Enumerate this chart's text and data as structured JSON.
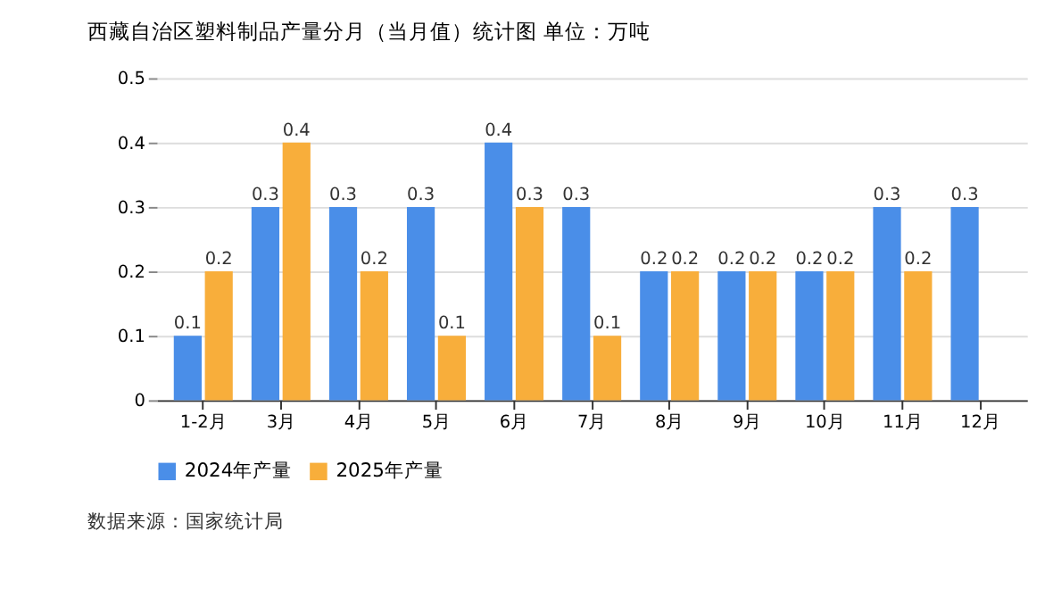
{
  "chart_data": {
    "type": "bar",
    "title": "西藏自治区塑料制品产量分月（当月值）统计图  单位：万吨",
    "categories": [
      "1-2月",
      "3月",
      "4月",
      "5月",
      "6月",
      "7月",
      "8月",
      "9月",
      "10月",
      "11月",
      "12月"
    ],
    "series": [
      {
        "name": "2024年产量",
        "color": "#4a8ee8",
        "values": [
          0.1,
          0.3,
          0.3,
          0.3,
          0.4,
          0.3,
          0.2,
          0.2,
          0.2,
          0.3,
          0.3
        ]
      },
      {
        "name": "2025年产量",
        "color": "#f8ae3b",
        "values": [
          0.2,
          0.4,
          0.2,
          0.1,
          0.3,
          0.1,
          0.2,
          0.2,
          0.2,
          0.2,
          null
        ]
      }
    ],
    "ylim": [
      0,
      0.5
    ],
    "yticks": [
      0,
      0.1,
      0.2,
      0.3,
      0.4,
      0.5
    ],
    "grid": "y",
    "legend": "bottom",
    "data_labels": true,
    "annotations": [
      "数据来源：国家统计局"
    ]
  }
}
